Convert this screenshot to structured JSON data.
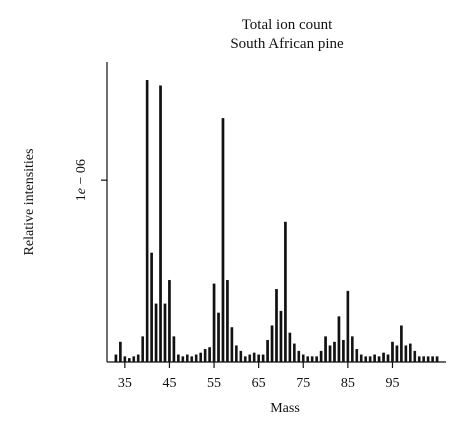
{
  "chart_data": {
    "type": "bar",
    "title_lines": [
      "Total ion count",
      "South African pine"
    ],
    "xlabel": "Mass",
    "ylabel": "Relative intensities",
    "xlim": [
      31,
      107
    ],
    "ylim": [
      0,
      1.65e-06
    ],
    "x_ticks": [
      35,
      45,
      55,
      65,
      75,
      85,
      95
    ],
    "x_tick_labels": [
      "35",
      "45",
      "55",
      "65",
      "75",
      "85",
      "95"
    ],
    "y_ticks": [
      1e-06
    ],
    "y_tick_labels": [
      "1e − 06"
    ],
    "grid": false,
    "legend": "none",
    "x": [
      33,
      34,
      35,
      36,
      37,
      38,
      39,
      40,
      41,
      42,
      43,
      44,
      45,
      46,
      47,
      48,
      49,
      50,
      51,
      52,
      53,
      54,
      55,
      56,
      57,
      58,
      59,
      60,
      61,
      62,
      63,
      64,
      65,
      66,
      67,
      68,
      69,
      70,
      71,
      72,
      73,
      74,
      75,
      76,
      77,
      78,
      79,
      80,
      81,
      82,
      83,
      84,
      85,
      86,
      87,
      88,
      89,
      90,
      91,
      92,
      93,
      94,
      95,
      96,
      97,
      98,
      99,
      100,
      101,
      102,
      103,
      104,
      105
    ],
    "values": [
      4e-08,
      1.1e-07,
      3e-08,
      2e-08,
      3e-08,
      4e-08,
      1.4e-07,
      1.55e-06,
      6e-07,
      3.2e-07,
      1.52e-06,
      3.2e-07,
      4.5e-07,
      1.4e-07,
      4e-08,
      3e-08,
      4e-08,
      3e-08,
      4e-08,
      5e-08,
      7e-08,
      8e-08,
      4.3e-07,
      2.7e-07,
      1.34e-06,
      4.5e-07,
      1.9e-07,
      9e-08,
      6e-08,
      3e-08,
      4e-08,
      5e-08,
      4e-08,
      4e-08,
      1.2e-07,
      2e-07,
      4e-07,
      2.8e-07,
      7.7e-07,
      1.6e-07,
      1e-07,
      6e-08,
      4e-08,
      3e-08,
      3e-08,
      3e-08,
      6e-08,
      1.4e-07,
      9e-08,
      1.1e-07,
      2.5e-07,
      1.2e-07,
      3.9e-07,
      1.4e-07,
      7e-08,
      4e-08,
      3e-08,
      3e-08,
      4e-08,
      3e-08,
      5e-08,
      4e-08,
      1.1e-07,
      9e-08,
      2e-07,
      9e-08,
      1e-07,
      6e-08,
      3e-08,
      3e-08,
      3e-08,
      3e-08,
      3e-08
    ]
  }
}
